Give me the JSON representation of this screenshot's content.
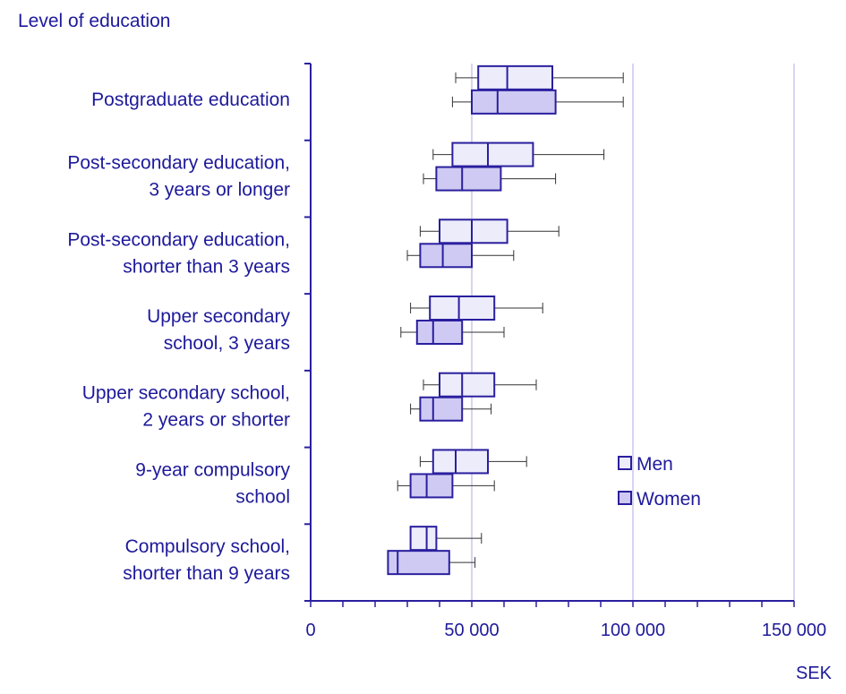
{
  "chart_data": {
    "type": "boxplot",
    "ylabel": "Level of education",
    "xlabel": "SEK",
    "xlim": [
      0,
      150000
    ],
    "x_ticks": [
      0,
      50000,
      100000,
      150000
    ],
    "x_tick_labels": [
      "0",
      "50 000",
      "100 000",
      "150 000"
    ],
    "x_minor_step": 10000,
    "grid": "vertical gridlines at major ticks",
    "legend_position": "bottom-right",
    "categories": [
      [
        "Postgraduate education"
      ],
      [
        "Post-secondary education,",
        "3 years or longer"
      ],
      [
        "Post-secondary education,",
        "shorter than 3 years"
      ],
      [
        "Upper secondary",
        "school, 3 years"
      ],
      [
        "Upper secondary school,",
        "2 years or shorter"
      ],
      [
        "9-year compulsory",
        "school"
      ],
      [
        "Compulsory school,",
        "shorter than 9 years"
      ]
    ],
    "series": [
      {
        "name": "Men",
        "color": "#ececfb",
        "boxes": [
          {
            "whisker_low": 45000,
            "q1": 52000,
            "median": 61000,
            "q3": 75000,
            "whisker_high": 97000
          },
          {
            "whisker_low": 38000,
            "q1": 44000,
            "median": 55000,
            "q3": 69000,
            "whisker_high": 91000
          },
          {
            "whisker_low": 34000,
            "q1": 40000,
            "median": 50000,
            "q3": 61000,
            "whisker_high": 77000
          },
          {
            "whisker_low": 31000,
            "q1": 37000,
            "median": 46000,
            "q3": 57000,
            "whisker_high": 72000
          },
          {
            "whisker_low": 35000,
            "q1": 40000,
            "median": 47000,
            "q3": 57000,
            "whisker_high": 70000
          },
          {
            "whisker_low": 34000,
            "q1": 38000,
            "median": 45000,
            "q3": 55000,
            "whisker_high": 67000
          },
          {
            "whisker_low": 31000,
            "q1": 31000,
            "median": 36000,
            "q3": 39000,
            "whisker_high": 53000
          }
        ]
      },
      {
        "name": "Women",
        "color": "#cfcaf3",
        "boxes": [
          {
            "whisker_low": 44000,
            "q1": 50000,
            "median": 58000,
            "q3": 76000,
            "whisker_high": 97000
          },
          {
            "whisker_low": 35000,
            "q1": 39000,
            "median": 47000,
            "q3": 59000,
            "whisker_high": 76000
          },
          {
            "whisker_low": 30000,
            "q1": 34000,
            "median": 41000,
            "q3": 50000,
            "whisker_high": 63000
          },
          {
            "whisker_low": 28000,
            "q1": 33000,
            "median": 38000,
            "q3": 47000,
            "whisker_high": 60000
          },
          {
            "whisker_low": 31000,
            "q1": 34000,
            "median": 38000,
            "q3": 47000,
            "whisker_high": 56000
          },
          {
            "whisker_low": 27000,
            "q1": 31000,
            "median": 36000,
            "q3": 44000,
            "whisker_high": 57000
          },
          {
            "whisker_low": 24000,
            "q1": 24000,
            "median": 27000,
            "q3": 43000,
            "whisker_high": 51000
          }
        ]
      }
    ]
  },
  "colors": {
    "text": "#1e1a9a",
    "axis": "#2a1f9e",
    "grid": "#c9c6ee",
    "whisker": "#333333"
  }
}
